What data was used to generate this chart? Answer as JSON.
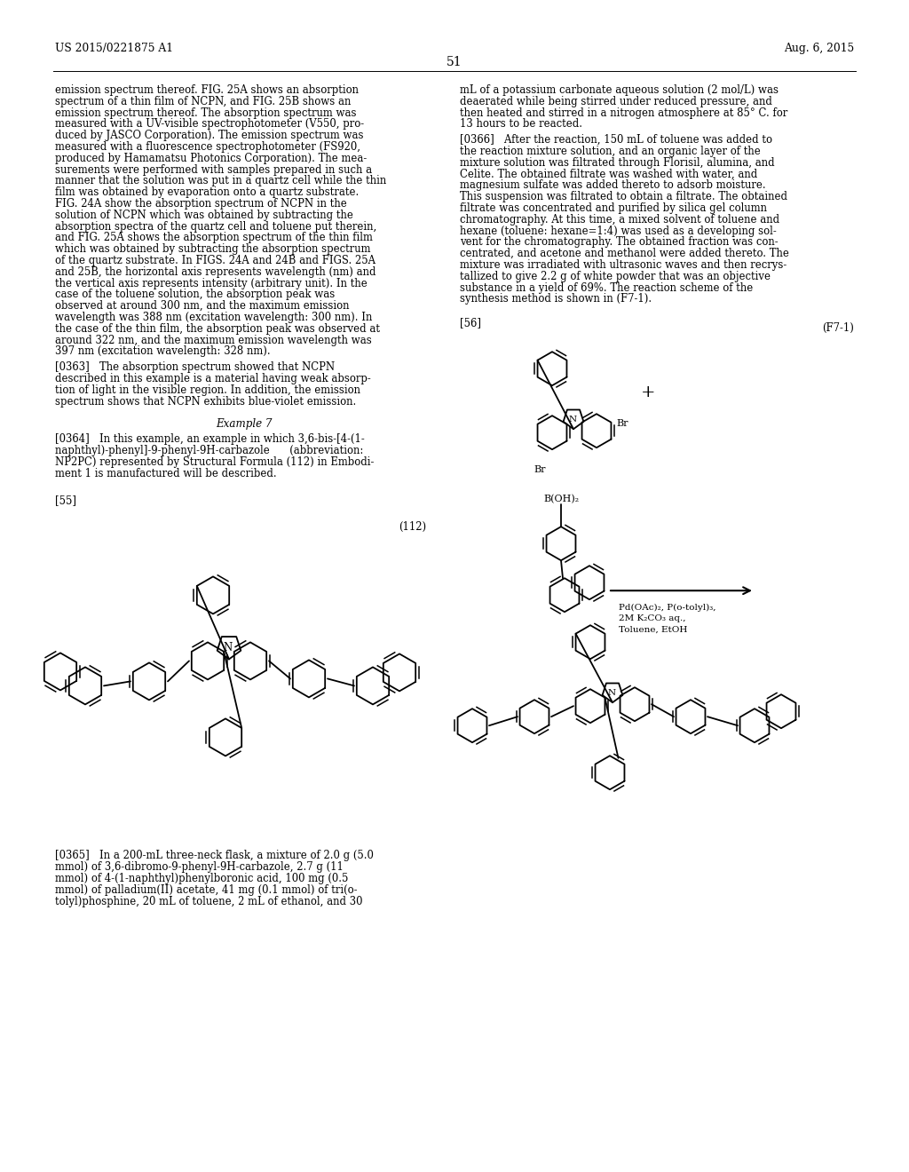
{
  "page_number": "51",
  "patent_number": "US 2015/0221875 A1",
  "patent_date": "Aug. 6, 2015",
  "background_color": "#ffffff",
  "left_col_lines": [
    "emission spectrum thereof. FIG. 25A shows an absorption",
    "spectrum of a thin film of NCPN, and FIG. 25B shows an",
    "emission spectrum thereof. The absorption spectrum was",
    "measured with a UV-visible spectrophotometer (V550, pro-",
    "duced by JASCO Corporation). The emission spectrum was",
    "measured with a fluorescence spectrophotometer (FS920,",
    "produced by Hamamatsu Photonics Corporation). The mea-",
    "surements were performed with samples prepared in such a",
    "manner that the solution was put in a quartz cell while the thin",
    "film was obtained by evaporation onto a quartz substrate.",
    "FIG. 24A show the absorption spectrum of NCPN in the",
    "solution of NCPN which was obtained by subtracting the",
    "absorption spectra of the quartz cell and toluene put therein,",
    "and FIG. 25A shows the absorption spectrum of the thin film",
    "which was obtained by subtracting the absorption spectrum",
    "of the quartz substrate. In FIGS. 24A and 24B and FIGS. 25A",
    "and 25B, the horizontal axis represents wavelength (nm) and",
    "the vertical axis represents intensity (arbitrary unit). In the",
    "case of the toluene solution, the absorption peak was",
    "observed at around 300 nm, and the maximum emission",
    "wavelength was 388 nm (excitation wavelength: 300 nm). In",
    "the case of the thin film, the absorption peak was observed at",
    "around 322 nm, and the maximum emission wavelength was",
    "397 nm (excitation wavelength: 328 nm)."
  ],
  "para_363": [
    "[0363]   The absorption spectrum showed that NCPN",
    "described in this example is a material having weak absorp-",
    "tion of light in the visible region. In addition, the emission",
    "spectrum shows that NCPN exhibits blue-violet emission."
  ],
  "example7": "Example 7",
  "para_364": [
    "[0364]   In this example, an example in which 3,6-bis-[4-(1-",
    "naphthyl)-phenyl]-9-phenyl-9H-carbazole      (abbreviation:",
    "NP2PC) represented by Structural Formula (112) in Embodi-",
    "ment 1 is manufactured will be described."
  ],
  "label_55": "[55]",
  "label_112": "(112)",
  "label_56": "[56]",
  "label_F71": "(F7-1)",
  "right_col_lines": [
    "mL of a potassium carbonate aqueous solution (2 mol/L) was",
    "deaerated while being stirred under reduced pressure, and",
    "then heated and stirred in a nitrogen atmosphere at 85° C. for",
    "13 hours to be reacted."
  ],
  "para_366": [
    "[0366]   After the reaction, 150 mL of toluene was added to",
    "the reaction mixture solution, and an organic layer of the",
    "mixture solution was filtrated through Florisil, alumina, and",
    "Celite. The obtained filtrate was washed with water, and",
    "magnesium sulfate was added thereto to adsorb moisture.",
    "This suspension was filtrated to obtain a filtrate. The obtained",
    "filtrate was concentrated and purified by silica gel column",
    "chromatography. At this time, a mixed solvent of toluene and",
    "hexane (toluene: hexane=1:4) was used as a developing sol-",
    "vent for the chromatography. The obtained fraction was con-",
    "centrated, and acetone and methanol were added thereto. The",
    "mixture was irradiated with ultrasonic waves and then recrys-",
    "tallized to give 2.2 g of white powder that was an objective",
    "substance in a yield of 69%. The reaction scheme of the",
    "synthesis method is shown in (F7-1)."
  ],
  "para_365": [
    "[0365]   In a 200-mL three-neck flask, a mixture of 2.0 g (5.0",
    "mmol) of 3,6-dibromo-9-phenyl-9H-carbazole, 2.7 g (11",
    "mmol) of 4-(1-naphthyl)phenylboronic acid, 100 mg (0.5",
    "mmol) of palladium(II) acetate, 41 mg (0.1 mmol) of tri(o-",
    "tolyl)phosphine, 20 mL of toluene, 2 mL of ethanol, and 30"
  ],
  "reaction_conditions": "Pd(OAc)₂, P(o-tolyl)₃,\n2M K₂CO₃ aq.,\nToluene, EtOH",
  "br_text": "Br",
  "boh2_text": "B(OH)₂",
  "plus_text": "+"
}
